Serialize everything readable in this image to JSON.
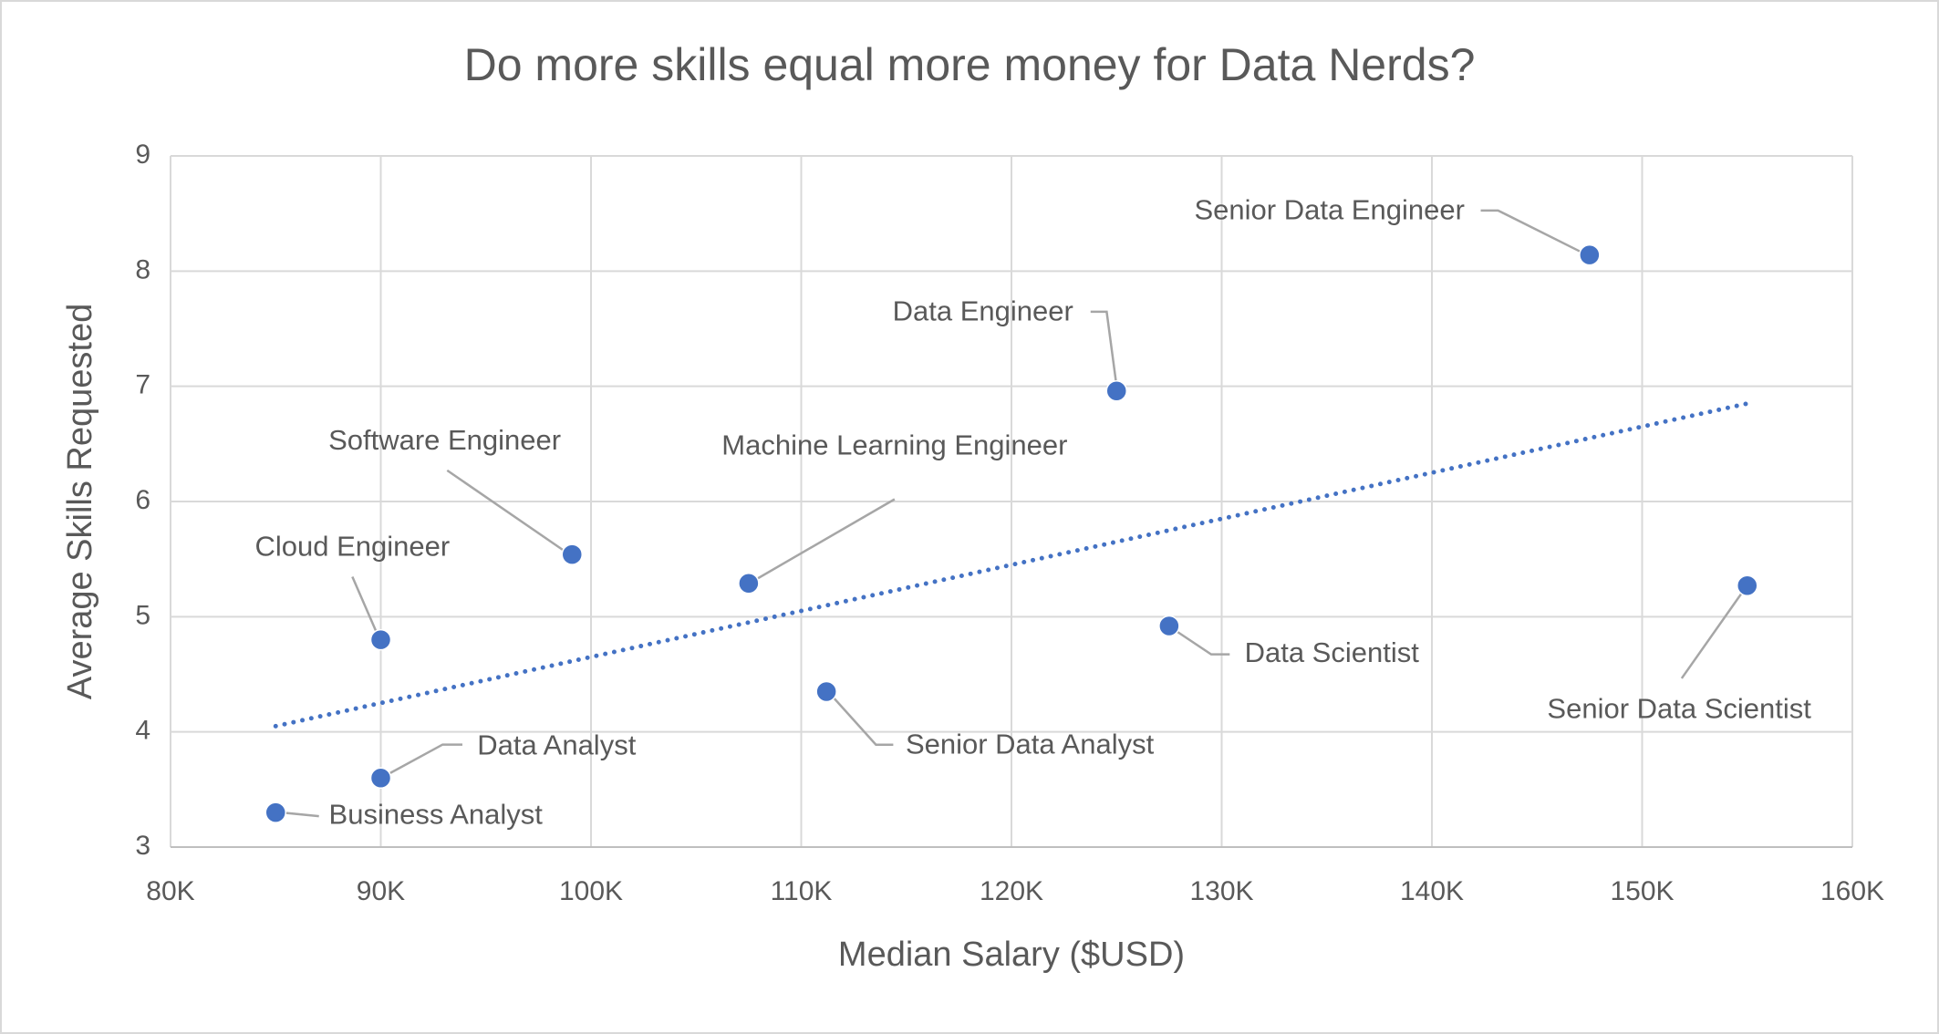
{
  "chart_data": {
    "type": "scatter",
    "title": "Do more skills equal more money  for Data Nerds?",
    "x_label": "Median Salary ($USD)",
    "y_label": "Average Skills Requested",
    "color": "#4472c4",
    "point_labels": [
      "Senior Data Engineer",
      "Data Engineer",
      "Software Engineer",
      "Machine Learning Engineer",
      "Cloud Engineer",
      "Data Scientist",
      "Senior Data Scientist",
      "Senior Data Analyst",
      "Data Analyst",
      "Business Analyst"
    ],
    "x": [
      147500,
      125000,
      99100,
      107500,
      90000,
      127500,
      155000,
      111200,
      90000,
      85000
    ],
    "values": [
      8.14,
      6.96,
      5.54,
      5.29,
      4.8,
      4.92,
      5.27,
      4.35,
      3.6,
      3.3
    ],
    "trendline": {
      "style": "dotted",
      "color": "#4472c4",
      "x": [
        85000,
        155000
      ],
      "values": [
        4.05,
        6.85
      ]
    },
    "xlim": [
      80000,
      160000
    ],
    "xticks": [
      {
        "value": 80000,
        "label": "80K"
      },
      {
        "value": 90000,
        "label": "90K"
      },
      {
        "value": 100000,
        "label": "100K"
      },
      {
        "value": 110000,
        "label": "110K"
      },
      {
        "value": 120000,
        "label": "120K"
      },
      {
        "value": 130000,
        "label": "130K"
      },
      {
        "value": 140000,
        "label": "140K"
      },
      {
        "value": 150000,
        "label": "150K"
      },
      {
        "value": 160000,
        "label": "160K"
      }
    ],
    "ylim": [
      3,
      9
    ],
    "yticks": [
      3,
      4,
      5,
      6,
      7,
      8,
      9
    ],
    "grid": true
  }
}
